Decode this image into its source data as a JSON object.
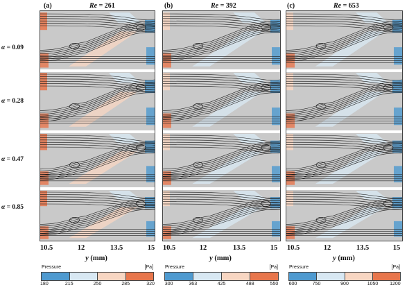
{
  "panels": [
    {
      "letter": "(a)",
      "re_label": "Re",
      "re_value": "= 261",
      "legend": {
        "title": "Pressure",
        "unit": "[Pa]",
        "values": [
          "180",
          "215",
          "250",
          "285",
          "320"
        ]
      }
    },
    {
      "letter": "(b)",
      "re_label": "Re",
      "re_value": "= 392",
      "legend": {
        "title": "Pressure",
        "unit": "[Pa]",
        "values": [
          "300",
          "363",
          "425",
          "488",
          "550"
        ]
      }
    },
    {
      "letter": "(c)",
      "re_label": "Re",
      "re_value": "= 653",
      "legend": {
        "title": "Pressure",
        "unit": "[Pa]",
        "values": [
          "600",
          "750",
          "900",
          "1050",
          "1200"
        ]
      }
    }
  ],
  "rows": [
    {
      "symbol": "α",
      "value": "= 0.09"
    },
    {
      "symbol": "α",
      "value": "= 0.28"
    },
    {
      "symbol": "α",
      "value": "= 0.47"
    },
    {
      "symbol": "α",
      "value": "= 0.85"
    }
  ],
  "x_axis": {
    "symbol": "y",
    "unit": "(mm)",
    "ticks": [
      "10.5",
      "12",
      "13.5",
      "15"
    ]
  },
  "colors": {
    "background": "#c9c9c9",
    "stream": "#1a1a1a",
    "low": "#4e9ad0",
    "mid_low": "#d8e8f3",
    "mid_high": "#f8d6c2",
    "high": "#e8764c",
    "gap": "#ffffff"
  }
}
